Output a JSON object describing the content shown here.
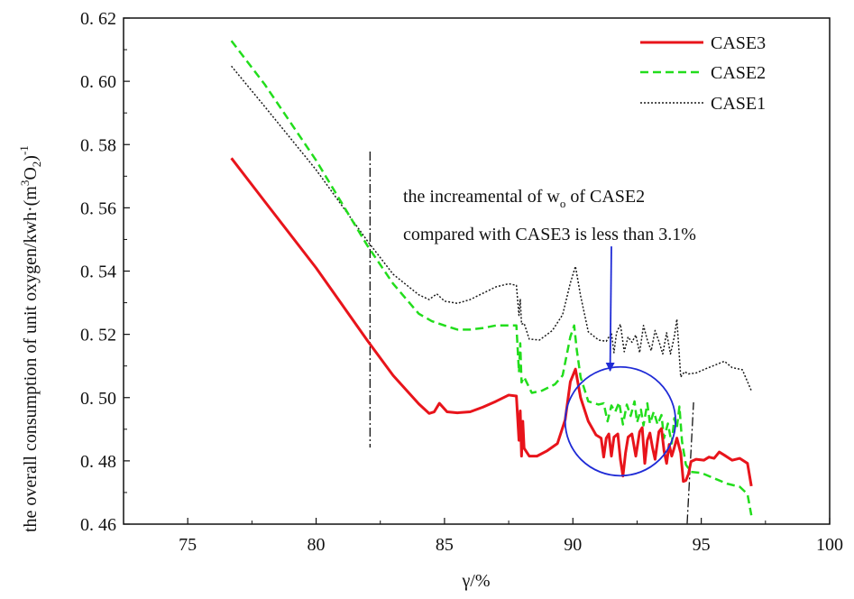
{
  "chart_data": {
    "type": "line",
    "title": "",
    "xlabel": "γ/%",
    "ylabel_main": "the overall consumption  of unit oxygen/kwh·(m",
    "ylabel_sup1": "3",
    "ylabel_mid": "O",
    "ylabel_sub": "2",
    "ylabel_end": ")",
    "ylabel_sup2": "-1",
    "xlim": [
      72.5,
      100
    ],
    "ylim": [
      0.46,
      0.62
    ],
    "x_ticks": [
      75,
      80,
      85,
      90,
      95,
      100
    ],
    "x_tick_labels": [
      "75",
      "80",
      "85",
      "90",
      "95",
      "100"
    ],
    "y_ticks": [
      0.46,
      0.48,
      0.5,
      0.52,
      0.54,
      0.56,
      0.58,
      0.6,
      0.62
    ],
    "y_tick_labels": [
      "0. 46",
      "0. 48",
      "0. 50",
      "0. 52",
      "0. 54",
      "0. 56",
      "0. 58",
      "0. 60",
      "0. 62"
    ],
    "legend_position": "top-right",
    "series": [
      {
        "name": "CASE3",
        "color": "#e8141b",
        "style": "solid",
        "points": [
          [
            76.7,
            0.5757
          ],
          [
            78,
            0.562
          ],
          [
            80,
            0.541
          ],
          [
            82,
            0.518
          ],
          [
            83,
            0.507
          ],
          [
            84,
            0.498
          ],
          [
            84.4,
            0.495
          ],
          [
            84.6,
            0.4955
          ],
          [
            84.8,
            0.4982
          ],
          [
            85.1,
            0.4955
          ],
          [
            85.5,
            0.4952
          ],
          [
            86,
            0.4955
          ],
          [
            86.5,
            0.497
          ],
          [
            87,
            0.4988
          ],
          [
            87.5,
            0.5008
          ],
          [
            87.8,
            0.5005
          ],
          [
            87.9,
            0.4865
          ],
          [
            87.95,
            0.4958
          ],
          [
            88.0,
            0.4815
          ],
          [
            88.05,
            0.4925
          ],
          [
            88.1,
            0.484
          ],
          [
            88.3,
            0.4815
          ],
          [
            88.6,
            0.4815
          ],
          [
            89.0,
            0.4832
          ],
          [
            89.4,
            0.4855
          ],
          [
            89.7,
            0.493
          ],
          [
            89.9,
            0.505
          ],
          [
            90.1,
            0.509
          ],
          [
            90.3,
            0.5
          ],
          [
            90.6,
            0.4925
          ],
          [
            90.9,
            0.4882
          ],
          [
            91.1,
            0.4872
          ],
          [
            91.2,
            0.4812
          ],
          [
            91.3,
            0.4872
          ],
          [
            91.4,
            0.4885
          ],
          [
            91.5,
            0.4815
          ],
          [
            91.6,
            0.4875
          ],
          [
            91.75,
            0.4885
          ],
          [
            91.85,
            0.4805
          ],
          [
            91.95,
            0.4752
          ],
          [
            92.05,
            0.4825
          ],
          [
            92.15,
            0.4875
          ],
          [
            92.3,
            0.4885
          ],
          [
            92.45,
            0.4815
          ],
          [
            92.6,
            0.4892
          ],
          [
            92.7,
            0.4905
          ],
          [
            92.8,
            0.4792
          ],
          [
            92.9,
            0.4865
          ],
          [
            93.0,
            0.4888
          ],
          [
            93.1,
            0.4842
          ],
          [
            93.2,
            0.4805
          ],
          [
            93.35,
            0.4892
          ],
          [
            93.45,
            0.4902
          ],
          [
            93.55,
            0.4832
          ],
          [
            93.65,
            0.4792
          ],
          [
            93.75,
            0.4852
          ],
          [
            93.85,
            0.4815
          ],
          [
            93.95,
            0.4842
          ],
          [
            94.05,
            0.4872
          ],
          [
            94.2,
            0.4825
          ],
          [
            94.3,
            0.4735
          ],
          [
            94.4,
            0.4738
          ],
          [
            94.5,
            0.4758
          ],
          [
            94.6,
            0.4798
          ],
          [
            94.8,
            0.4805
          ],
          [
            95.1,
            0.4802
          ],
          [
            95.3,
            0.4812
          ],
          [
            95.5,
            0.4808
          ],
          [
            95.7,
            0.4828
          ],
          [
            95.9,
            0.4818
          ],
          [
            96.2,
            0.4802
          ],
          [
            96.5,
            0.4808
          ],
          [
            96.8,
            0.4792
          ],
          [
            96.95,
            0.472
          ]
        ]
      },
      {
        "name": "CASE2",
        "color": "#22dd1c",
        "style": "dashed",
        "points": [
          [
            76.7,
            0.6128
          ],
          [
            78,
            0.599
          ],
          [
            80,
            0.575
          ],
          [
            82,
            0.548
          ],
          [
            83,
            0.536
          ],
          [
            84,
            0.5265
          ],
          [
            84.5,
            0.5242
          ],
          [
            85,
            0.5228
          ],
          [
            85.5,
            0.5215
          ],
          [
            86,
            0.5215
          ],
          [
            86.5,
            0.522
          ],
          [
            87,
            0.5228
          ],
          [
            87.5,
            0.5228
          ],
          [
            87.8,
            0.5228
          ],
          [
            87.9,
            0.508
          ],
          [
            87.95,
            0.5172
          ],
          [
            88.0,
            0.5048
          ],
          [
            88.1,
            0.5065
          ],
          [
            88.4,
            0.5015
          ],
          [
            88.8,
            0.5022
          ],
          [
            89.3,
            0.5042
          ],
          [
            89.6,
            0.507
          ],
          [
            89.9,
            0.5192
          ],
          [
            90.05,
            0.5228
          ],
          [
            90.15,
            0.5152
          ],
          [
            90.3,
            0.5065
          ],
          [
            90.6,
            0.4988
          ],
          [
            91.0,
            0.4978
          ],
          [
            91.2,
            0.4982
          ],
          [
            91.35,
            0.4925
          ],
          [
            91.5,
            0.4975
          ],
          [
            91.65,
            0.4955
          ],
          [
            91.8,
            0.4985
          ],
          [
            91.95,
            0.4915
          ],
          [
            92.1,
            0.4978
          ],
          [
            92.25,
            0.4942
          ],
          [
            92.4,
            0.4988
          ],
          [
            92.5,
            0.4922
          ],
          [
            92.65,
            0.4962
          ],
          [
            92.75,
            0.4912
          ],
          [
            92.9,
            0.4982
          ],
          [
            93.0,
            0.4918
          ],
          [
            93.15,
            0.4955
          ],
          [
            93.3,
            0.4915
          ],
          [
            93.45,
            0.4945
          ],
          [
            93.55,
            0.4872
          ],
          [
            93.7,
            0.4918
          ],
          [
            93.85,
            0.4855
          ],
          [
            93.95,
            0.4935
          ],
          [
            94.05,
            0.4905
          ],
          [
            94.15,
            0.4972
          ],
          [
            94.25,
            0.4862
          ],
          [
            94.4,
            0.4788
          ],
          [
            94.6,
            0.4765
          ],
          [
            95.0,
            0.4762
          ],
          [
            95.5,
            0.4745
          ],
          [
            96.0,
            0.4728
          ],
          [
            96.5,
            0.4718
          ],
          [
            96.8,
            0.4695
          ],
          [
            96.95,
            0.4628
          ]
        ]
      },
      {
        "name": "CASE1",
        "color": "#1a1a1a",
        "style": "dotted",
        "points": [
          [
            76.7,
            0.6048
          ],
          [
            78,
            0.592
          ],
          [
            80,
            0.572
          ],
          [
            82,
            0.5495
          ],
          [
            83,
            0.539
          ],
          [
            84,
            0.5325
          ],
          [
            84.4,
            0.531
          ],
          [
            84.7,
            0.5328
          ],
          [
            85.0,
            0.5305
          ],
          [
            85.5,
            0.5298
          ],
          [
            86,
            0.531
          ],
          [
            86.5,
            0.533
          ],
          [
            87,
            0.535
          ],
          [
            87.5,
            0.536
          ],
          [
            87.8,
            0.5355
          ],
          [
            87.9,
            0.526
          ],
          [
            87.95,
            0.5312
          ],
          [
            88.0,
            0.5232
          ],
          [
            88.1,
            0.5235
          ],
          [
            88.3,
            0.5185
          ],
          [
            88.7,
            0.5182
          ],
          [
            89.2,
            0.5212
          ],
          [
            89.6,
            0.5262
          ],
          [
            89.9,
            0.5362
          ],
          [
            90.1,
            0.5415
          ],
          [
            90.3,
            0.5322
          ],
          [
            90.6,
            0.5208
          ],
          [
            91.0,
            0.5182
          ],
          [
            91.3,
            0.5178
          ],
          [
            91.5,
            0.5205
          ],
          [
            91.6,
            0.5142
          ],
          [
            91.7,
            0.5205
          ],
          [
            91.85,
            0.5232
          ],
          [
            92.0,
            0.5145
          ],
          [
            92.15,
            0.5192
          ],
          [
            92.3,
            0.5175
          ],
          [
            92.45,
            0.5198
          ],
          [
            92.6,
            0.5142
          ],
          [
            92.75,
            0.5228
          ],
          [
            92.9,
            0.5182
          ],
          [
            93.05,
            0.5148
          ],
          [
            93.2,
            0.5212
          ],
          [
            93.35,
            0.5178
          ],
          [
            93.5,
            0.5138
          ],
          [
            93.65,
            0.5205
          ],
          [
            93.8,
            0.5138
          ],
          [
            93.95,
            0.5192
          ],
          [
            94.05,
            0.5248
          ],
          [
            94.2,
            0.5065
          ],
          [
            94.35,
            0.5082
          ],
          [
            94.5,
            0.5075
          ],
          [
            94.8,
            0.5078
          ],
          [
            95.2,
            0.5092
          ],
          [
            95.6,
            0.5105
          ],
          [
            95.9,
            0.5115
          ],
          [
            96.2,
            0.5095
          ],
          [
            96.6,
            0.5088
          ],
          [
            96.95,
            0.5022
          ]
        ]
      }
    ],
    "annotation": {
      "line1_pre": "the increamental of w",
      "line1_sub": "o",
      "line1_post": " of CASE2",
      "line2": "compared with CASE3 is less than 3.1%",
      "arrow_from": [
        91.5,
        0.5478
      ],
      "arrow_to": [
        91.45,
        0.5085
      ],
      "circle_center": [
        91.85,
        0.4925
      ],
      "circle_radius": [
        2.15,
        0.0172
      ],
      "arrow_color": "#1f2bd6",
      "circle_color": "#1f2bd6"
    },
    "reference_lines": [
      {
        "x1": 82.1,
        "y1": 0.5778,
        "x2": 82.1,
        "y2": 0.4842
      },
      {
        "x1": 94.45,
        "y1": 0.4602,
        "x2": 94.7,
        "y2": 0.4985
      }
    ]
  }
}
